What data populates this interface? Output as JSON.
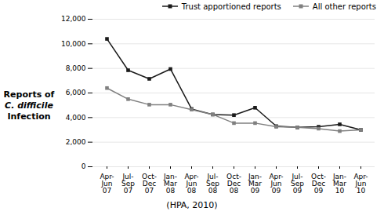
{
  "chart_data": {
    "type": "line",
    "ylabel": "Reports of\nC. difficile\nInfection",
    "caption": "(HPA, 2010)",
    "categories": [
      "Apr-\nJun\n07",
      "Jul-\nSep\n07",
      "Oct-\nDec\n07",
      "Jan-\nMar\n08",
      "Apr-\nJun\n08",
      "Jul-\nSep\n08",
      "Oct-\nDec\n08",
      "Jan-\nMar\n09",
      "Apr-\nJun\n09",
      "Jul-\nSep\n09",
      "Oct-\nDec\n09",
      "Jan-\nMar\n10",
      "Apr-\nJun\n10"
    ],
    "series": [
      {
        "name": "Trust apportioned reports",
        "color": "#1a1a1a",
        "marker": "square",
        "values": [
          10400,
          7850,
          7150,
          7950,
          4700,
          4250,
          4200,
          4800,
          3300,
          3200,
          3250,
          3450,
          3000
        ]
      },
      {
        "name": "All other reports",
        "color": "#808080",
        "marker": "square",
        "values": [
          6400,
          5500,
          5050,
          5050,
          4650,
          4250,
          3550,
          3550,
          3250,
          3200,
          3100,
          2900,
          3000
        ]
      }
    ],
    "ylim": [
      0,
      12000
    ],
    "yticks": [
      0,
      {
        "value": 2000,
        "label": "2,000"
      },
      {
        "value": 4000,
        "label": "4,000"
      },
      {
        "value": 6000,
        "label": "6,000"
      },
      {
        "value": 8000,
        "label": "8,000"
      },
      {
        "value": 10000,
        "label": "10,000"
      },
      {
        "value": 12000,
        "label": "12,000"
      }
    ],
    "grid": true,
    "legend": "upper right"
  }
}
